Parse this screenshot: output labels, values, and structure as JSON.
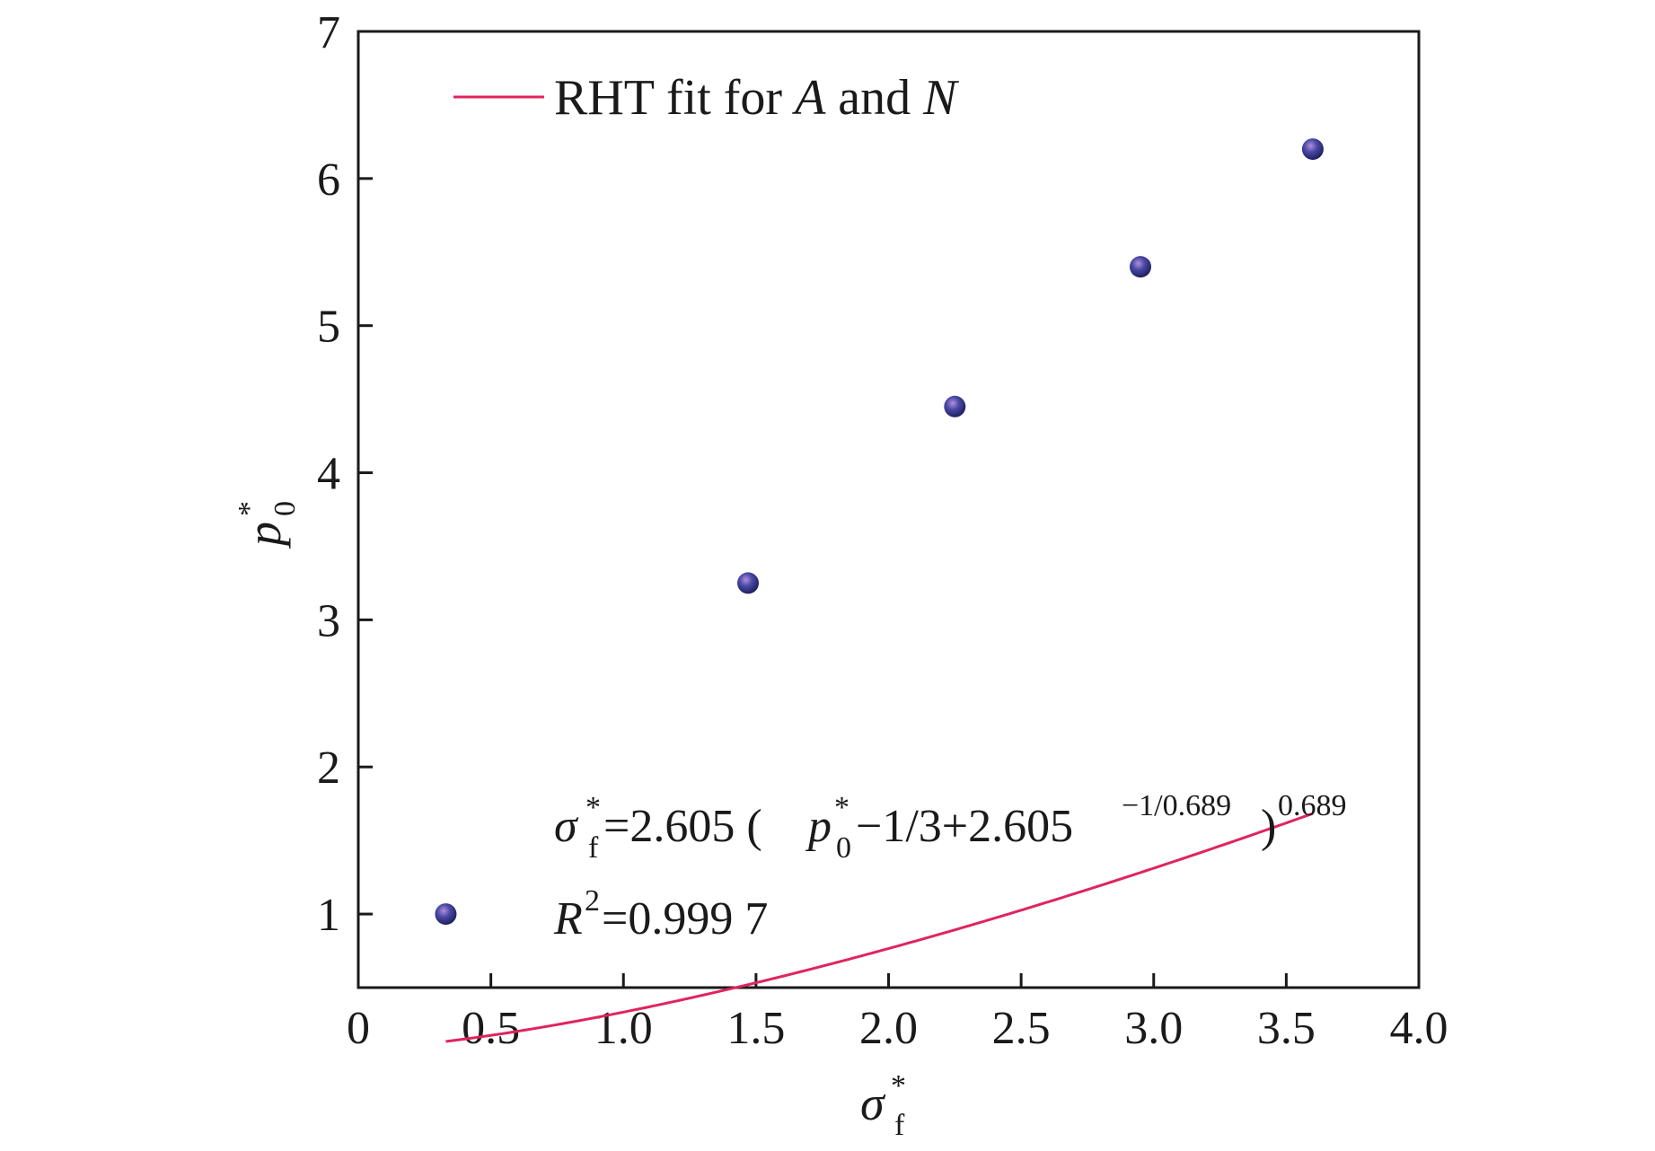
{
  "chart_data": {
    "type": "scatter",
    "title": "",
    "xlabel": {
      "main": "σ",
      "sub": "f",
      "sup": "*"
    },
    "ylabel": {
      "main": "p",
      "sub": "0",
      "sup": "*"
    },
    "xlim": [
      0,
      4.0
    ],
    "ylim": [
      0.5,
      7
    ],
    "xticks": [
      0,
      0.5,
      1.0,
      1.5,
      2.0,
      2.5,
      3.0,
      3.5,
      4.0
    ],
    "xtick_labels": [
      "0",
      "0.5",
      "1.0",
      "1.5",
      "2.0",
      "2.5",
      "3.0",
      "3.5",
      "4.0"
    ],
    "yticks": [
      1,
      2,
      3,
      4,
      5,
      6,
      7
    ],
    "ytick_labels": [
      "1",
      "2",
      "3",
      "4",
      "5",
      "6",
      "7"
    ],
    "grid": false,
    "legend": {
      "placement": "top-left",
      "prefix": "RHT fit for ",
      "var_a": "A",
      "conj": " and ",
      "var_b": "N"
    },
    "points": {
      "x": [
        0.33,
        1.47,
        2.25,
        2.95,
        3.6
      ],
      "y": [
        1.0,
        3.25,
        4.45,
        5.4,
        6.2
      ],
      "color": "#4a4aa8"
    },
    "fit_line": {
      "color": "#e0245e",
      "params": {
        "a": 2.605,
        "n": 0.689
      }
    },
    "annotations": {
      "eq_sigma": "σ",
      "eq_sigma_sub": "f",
      "eq_star": "*",
      "eq_mid": "=2.605 (",
      "eq_p": "p",
      "eq_p_sub": "0",
      "eq_tail": "−1/3+2.605",
      "eq_exp1": "−1/0.689",
      "eq_close": ")",
      "eq_exp2": "0.689",
      "r2_R": "R",
      "r2_sup": "2",
      "r2_val": "=0.999 7"
    }
  }
}
